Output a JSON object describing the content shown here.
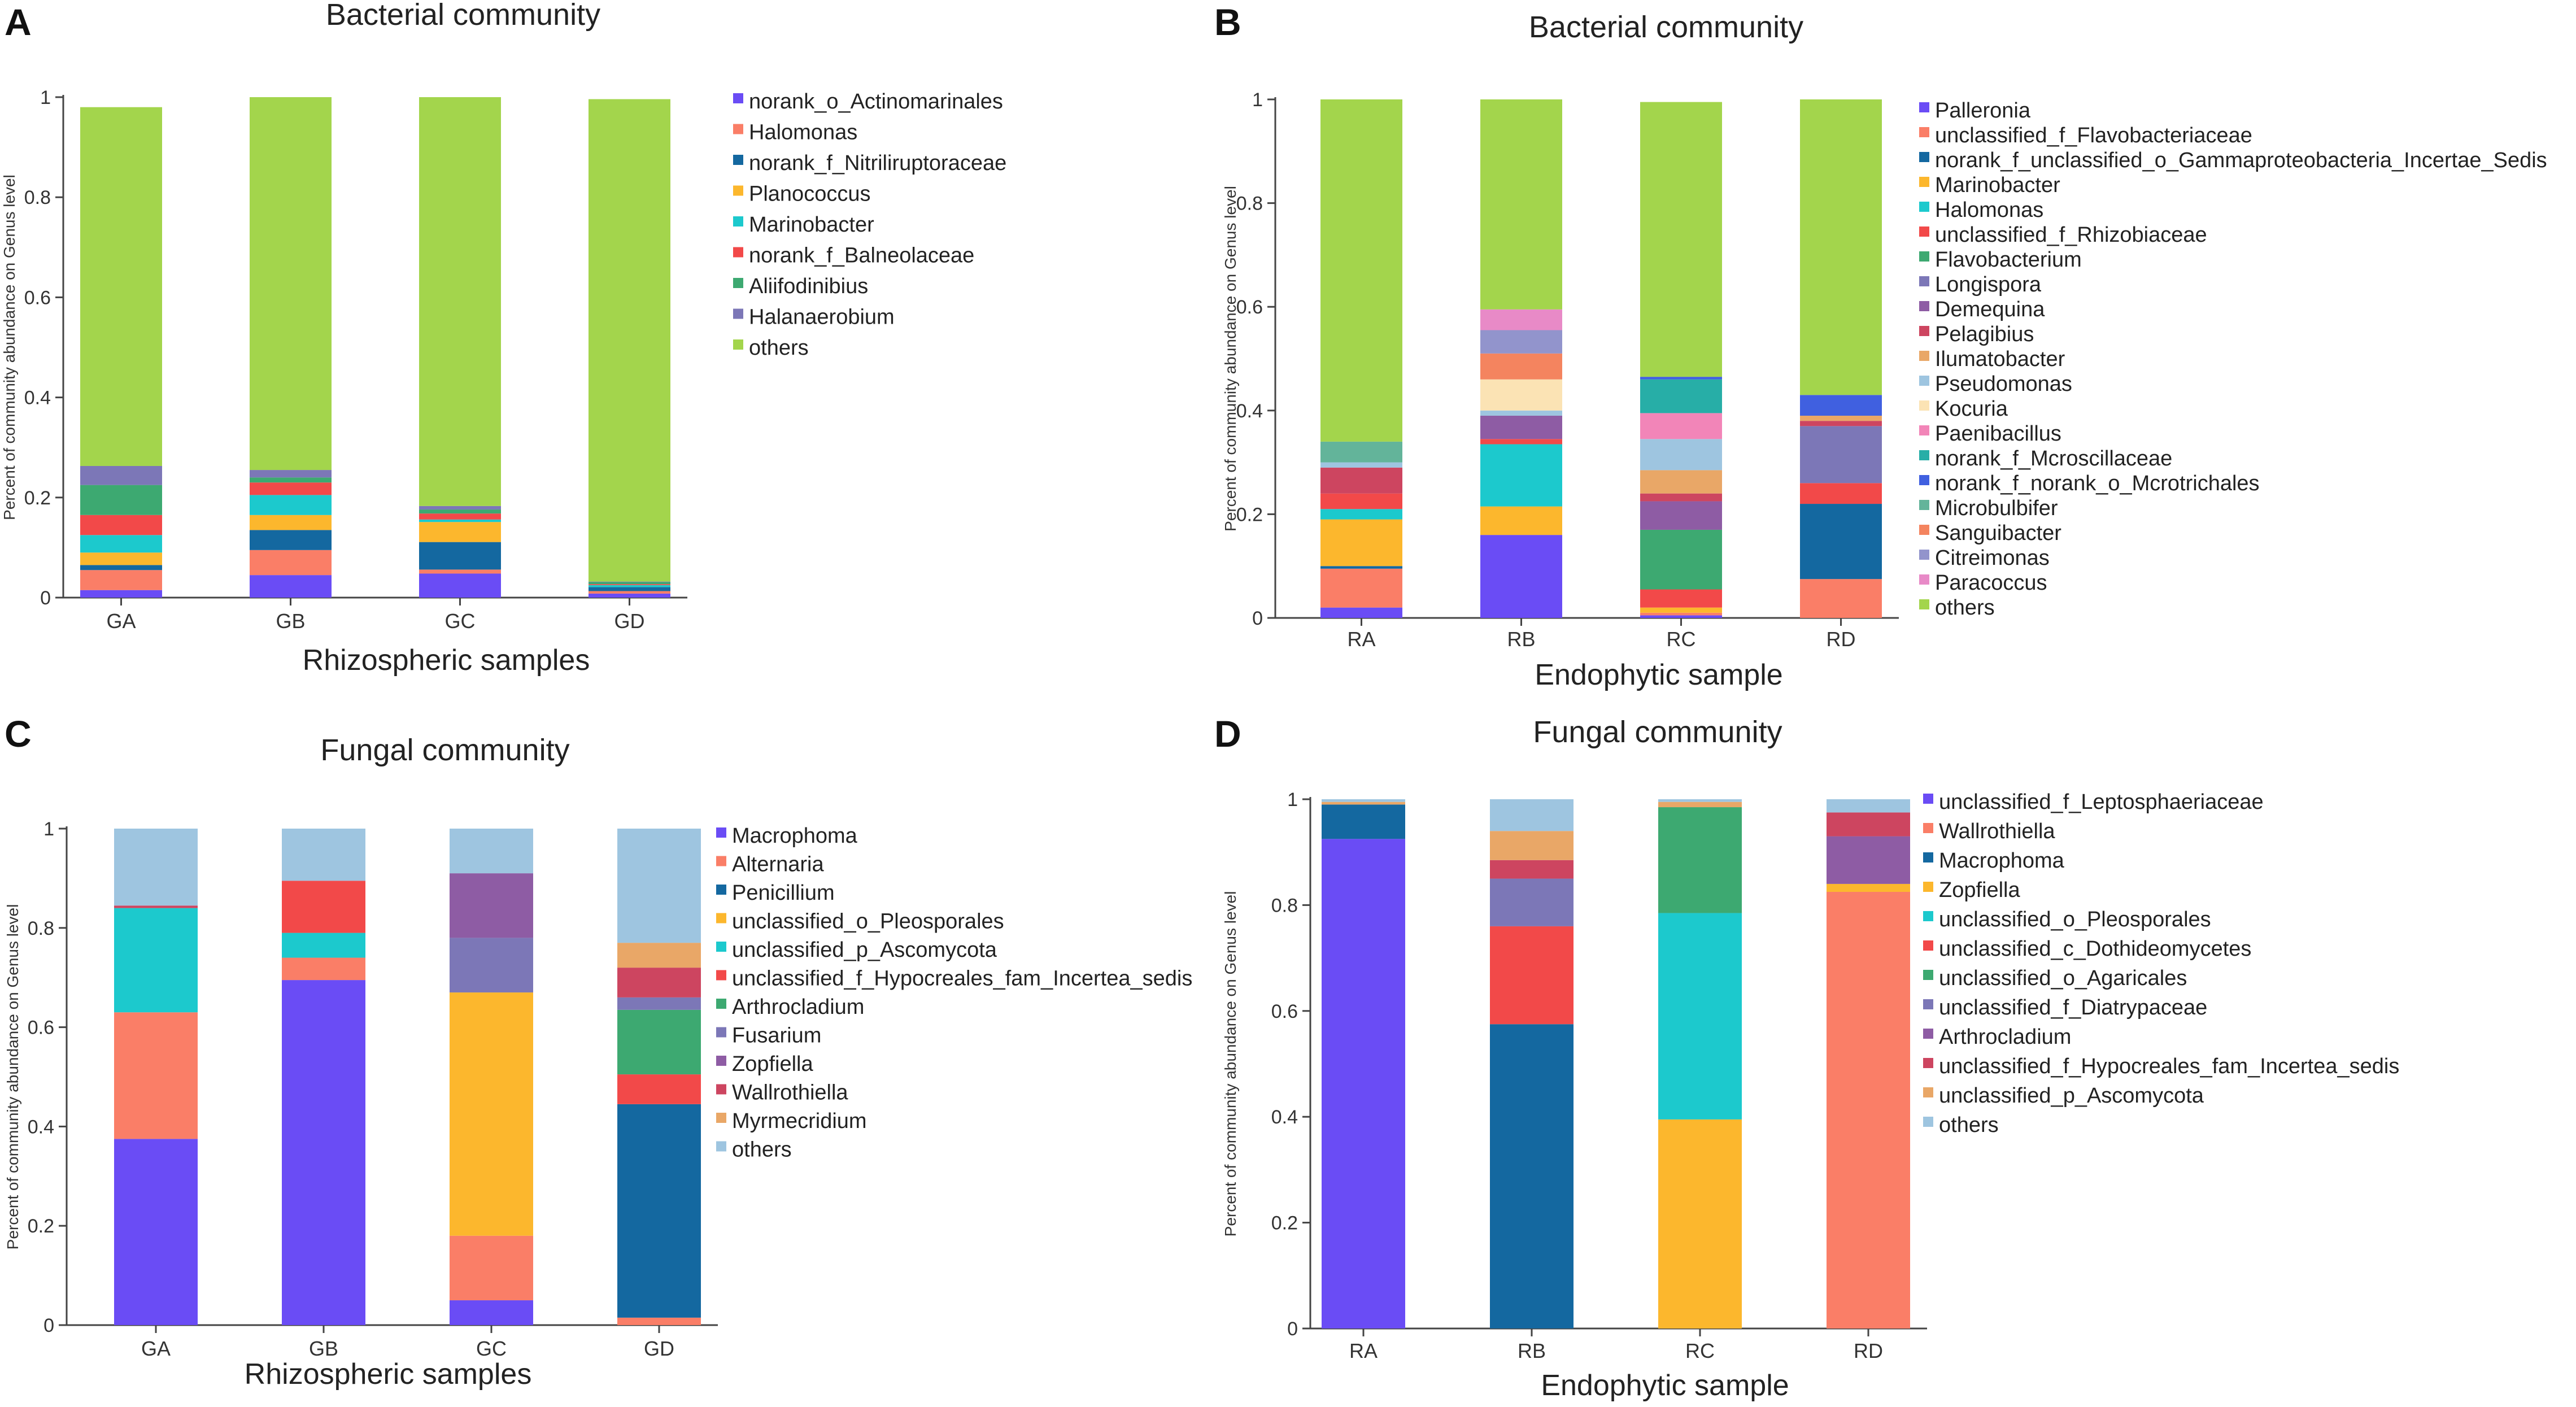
{
  "chart_data": [
    {
      "panel": "A",
      "type": "bar",
      "stacked": true,
      "title": "Bacterial community",
      "xlabel": "Rhizospheric samples",
      "ylabel": "Percent of community abundance on Genus level",
      "ylim": [
        0,
        1
      ],
      "yticks": [
        "0",
        "0.2",
        "0.4",
        "0.6",
        "0.8",
        "1"
      ],
      "categories": [
        "GA",
        "GB",
        "GC",
        "GD"
      ],
      "series": [
        {
          "name": "norank_o_Actinomarinales",
          "color": "#6a4cf5",
          "values": [
            0.015,
            0.045,
            0.048,
            0.008
          ]
        },
        {
          "name": "Halomonas",
          "color": "#fa7e67",
          "values": [
            0.04,
            0.05,
            0.008,
            0.005
          ]
        },
        {
          "name": "norank_f_Nitriliruptoraceae",
          "color": "#1468a0",
          "values": [
            0.01,
            0.04,
            0.055,
            0.008
          ]
        },
        {
          "name": "Planococcus",
          "color": "#fcb72d",
          "values": [
            0.025,
            0.03,
            0.04,
            0.0
          ]
        },
        {
          "name": "Marinobacter",
          "color": "#1cc9cd",
          "values": [
            0.035,
            0.04,
            0.005,
            0.004
          ]
        },
        {
          "name": "norank_f_Balneolaceae",
          "color": "#f24949",
          "values": [
            0.04,
            0.025,
            0.012,
            0.002
          ]
        },
        {
          "name": "Aliifodinibius",
          "color": "#3da971",
          "values": [
            0.06,
            0.01,
            0.008,
            0.004
          ]
        },
        {
          "name": "Halanaerobium",
          "color": "#7c77b7",
          "values": [
            0.038,
            0.015,
            0.007,
            0.001
          ]
        },
        {
          "name": "others",
          "color": "#a3d54c",
          "values": [
            0.717,
            0.745,
            0.817,
            0.964
          ]
        }
      ]
    },
    {
      "panel": "B",
      "type": "bar",
      "stacked": true,
      "title": "Bacterial community",
      "xlabel": "Endophytic sample",
      "ylabel": "Percent of community abundance on Genus level",
      "ylim": [
        0,
        1
      ],
      "yticks": [
        "0",
        "0.2",
        "0.4",
        "0.6",
        "0.8",
        "1"
      ],
      "categories": [
        "RA",
        "RB",
        "RC",
        "RD"
      ],
      "series": [
        {
          "name": "Palleronia",
          "color": "#6a4cf5",
          "values": [
            0.02,
            0.16,
            0.005,
            0.0
          ]
        },
        {
          "name": "unclassified_f_Flavobacteriaceae",
          "color": "#fa7e67",
          "values": [
            0.075,
            0.0,
            0.005,
            0.075
          ]
        },
        {
          "name": "norank_f_unclassified_o_Gammaproteobacteria_Incertae_Sedis",
          "color": "#1468a0",
          "values": [
            0.005,
            0.0,
            0.0,
            0.145
          ]
        },
        {
          "name": "Marinobacter",
          "color": "#fcb72d",
          "values": [
            0.09,
            0.055,
            0.01,
            0.0
          ]
        },
        {
          "name": "Halomonas",
          "color": "#1cc9cd",
          "values": [
            0.02,
            0.12,
            0.0,
            0.0
          ]
        },
        {
          "name": "unclassified_f_Rhizobiaceae",
          "color": "#f24949",
          "values": [
            0.03,
            0.01,
            0.035,
            0.04
          ]
        },
        {
          "name": "Flavobacterium",
          "color": "#3da971",
          "values": [
            0.0,
            0.0,
            0.115,
            0.0
          ]
        },
        {
          "name": "Longispora",
          "color": "#7c77b7",
          "values": [
            0.0,
            0.0,
            0.0,
            0.11
          ]
        },
        {
          "name": "Demequina",
          "color": "#8e5ca4",
          "values": [
            0.0,
            0.045,
            0.055,
            0.0
          ]
        },
        {
          "name": "Pelagibius",
          "color": "#cd4560",
          "values": [
            0.05,
            0.0,
            0.015,
            0.01
          ]
        },
        {
          "name": "Ilumatobacter",
          "color": "#e9a767",
          "values": [
            0.0,
            0.0,
            0.045,
            0.01
          ]
        },
        {
          "name": "Pseudomonas",
          "color": "#9ec5e0",
          "values": [
            0.01,
            0.01,
            0.06,
            0.0
          ]
        },
        {
          "name": "Kocuria",
          "color": "#fbe3b4",
          "values": [
            0.0,
            0.06,
            0.0,
            0.0
          ]
        },
        {
          "name": "Paenibacillus",
          "color": "#f285b8",
          "values": [
            0.0,
            0.0,
            0.05,
            0.0
          ]
        },
        {
          "name": "norank_f_Mcroscillaceae",
          "color": "#27aea7",
          "values": [
            0.0,
            0.0,
            0.065,
            0.0
          ]
        },
        {
          "name": "norank_f_norank_o_Mcrotrichales",
          "color": "#4060e0",
          "values": [
            0.0,
            0.0,
            0.005,
            0.04
          ]
        },
        {
          "name": "Microbulbifer",
          "color": "#63b49a",
          "values": [
            0.04,
            0.0,
            0.0,
            0.0
          ]
        },
        {
          "name": "Sanguibacter",
          "color": "#f4845f",
          "values": [
            0.0,
            0.05,
            0.0,
            0.0
          ]
        },
        {
          "name": "Citreimonas",
          "color": "#9294cc",
          "values": [
            0.0,
            0.045,
            0.0,
            0.0
          ]
        },
        {
          "name": "Paracoccus",
          "color": "#e88ac7",
          "values": [
            0.0,
            0.04,
            0.0,
            0.0
          ]
        },
        {
          "name": "others",
          "color": "#a3d54c",
          "values": [
            0.66,
            0.405,
            0.53,
            0.57
          ]
        }
      ]
    },
    {
      "panel": "C",
      "type": "bar",
      "stacked": true,
      "title": "Fungal community",
      "xlabel": "Rhizospheric samples",
      "ylabel": "Percent of community abundance on Genus level",
      "ylim": [
        0,
        1
      ],
      "yticks": [
        "0",
        "0.2",
        "0.4",
        "0.6",
        "0.8",
        "1"
      ],
      "categories": [
        "GA",
        "GB",
        "GC",
        "GD"
      ],
      "series": [
        {
          "name": "Macrophoma",
          "color": "#6a4cf5",
          "values": [
            0.375,
            0.695,
            0.05,
            0.0
          ]
        },
        {
          "name": "Alternaria",
          "color": "#fa7e67",
          "values": [
            0.255,
            0.045,
            0.13,
            0.015
          ]
        },
        {
          "name": "Penicillium",
          "color": "#1468a0",
          "values": [
            0.0,
            0.0,
            0.0,
            0.43
          ]
        },
        {
          "name": "unclassified_o_Pleosporales",
          "color": "#fcb72d",
          "values": [
            0.0,
            0.0,
            0.49,
            0.0
          ]
        },
        {
          "name": "unclassified_p_Ascomycota",
          "color": "#1cc9cd",
          "values": [
            0.21,
            0.05,
            0.0,
            0.0
          ]
        },
        {
          "name": "unclassified_f_Hypocreales_fam_Incertea_sedis",
          "color": "#f24949",
          "values": [
            0.0,
            0.105,
            0.0,
            0.06
          ]
        },
        {
          "name": "Arthrocladium",
          "color": "#3da971",
          "values": [
            0.0,
            0.0,
            0.0,
            0.13
          ]
        },
        {
          "name": "Fusarium",
          "color": "#7c77b7",
          "values": [
            0.0,
            0.0,
            0.11,
            0.025
          ]
        },
        {
          "name": "Zopfiella",
          "color": "#8e5ca4",
          "values": [
            0.0,
            0.0,
            0.13,
            0.0
          ]
        },
        {
          "name": "Wallrothiella",
          "color": "#cd4560",
          "values": [
            0.005,
            0.0,
            0.0,
            0.06
          ]
        },
        {
          "name": "Myrmecridium",
          "color": "#e9a767",
          "values": [
            0.0,
            0.0,
            0.0,
            0.05
          ]
        },
        {
          "name": "others",
          "color": "#9ec5e0",
          "values": [
            0.155,
            0.105,
            0.09,
            0.23
          ]
        }
      ]
    },
    {
      "panel": "D",
      "type": "bar",
      "stacked": true,
      "title": "Fungal community",
      "xlabel": "Endophytic sample",
      "ylabel": "Percent of community abundance on Genus level",
      "ylim": [
        0,
        1
      ],
      "yticks": [
        "0",
        "0.2",
        "0.4",
        "0.6",
        "0.8",
        "1"
      ],
      "categories": [
        "RA",
        "RB",
        "RC",
        "RD"
      ],
      "series": [
        {
          "name": "unclassified_f_Leptosphaeriaceae",
          "color": "#6a4cf5",
          "values": [
            0.925,
            0.0,
            0.0,
            0.0
          ]
        },
        {
          "name": "Wallrothiella",
          "color": "#fa7e67",
          "values": [
            0.0,
            0.0,
            0.0,
            0.825
          ]
        },
        {
          "name": "Macrophoma",
          "color": "#1468a0",
          "values": [
            0.065,
            0.575,
            0.0,
            0.0
          ]
        },
        {
          "name": "Zopfiella",
          "color": "#fcb72d",
          "values": [
            0.0,
            0.0,
            0.395,
            0.015
          ]
        },
        {
          "name": "unclassified_o_Pleosporales",
          "color": "#1cc9cd",
          "values": [
            0.0,
            0.0,
            0.39,
            0.0
          ]
        },
        {
          "name": "unclassified_c_Dothideomycetes",
          "color": "#f24949",
          "values": [
            0.0,
            0.185,
            0.0,
            0.0
          ]
        },
        {
          "name": "unclassified_o_Agaricales",
          "color": "#3da971",
          "values": [
            0.0,
            0.0,
            0.2,
            0.0
          ]
        },
        {
          "name": "unclassified_f_Diatrypaceae",
          "color": "#7c77b7",
          "values": [
            0.0,
            0.09,
            0.0,
            0.0
          ]
        },
        {
          "name": "Arthrocladium",
          "color": "#8e5ca4",
          "values": [
            0.0,
            0.0,
            0.0,
            0.09
          ]
        },
        {
          "name": "unclassified_f_Hypocreales_fam_Incertea_sedis",
          "color": "#cd4560",
          "values": [
            0.0,
            0.035,
            0.0,
            0.045
          ]
        },
        {
          "name": "unclassified_p_Ascomycota",
          "color": "#e9a767",
          "values": [
            0.005,
            0.055,
            0.01,
            0.0
          ]
        },
        {
          "name": "others",
          "color": "#9ec5e0",
          "values": [
            0.005,
            0.06,
            0.005,
            0.025
          ]
        }
      ]
    }
  ]
}
